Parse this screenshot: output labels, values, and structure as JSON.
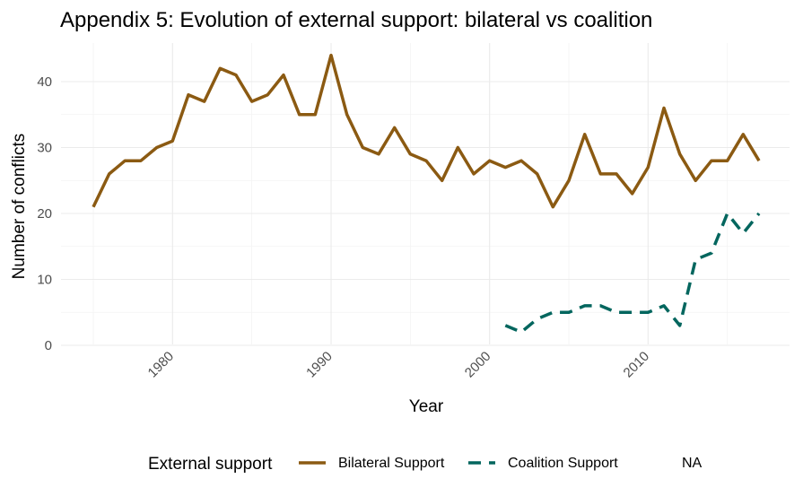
{
  "chart_data": {
    "type": "line",
    "title": "Appendix 5: Evolution of external support: bilateral vs coalition",
    "xlabel": "Year",
    "ylabel": "Number of conflicts",
    "xlim": [
      1975,
      2017
    ],
    "ylim": [
      0,
      44
    ],
    "x_ticks": [
      1980,
      1990,
      2000,
      2010
    ],
    "y_ticks": [
      0,
      10,
      20,
      30,
      40
    ],
    "grid": true,
    "legend": {
      "title": "External support",
      "position": "bottom",
      "entries": [
        "Bilateral Support",
        "Coalition Support",
        "NA"
      ]
    },
    "series": [
      {
        "name": "Bilateral Support",
        "color": "#8b5a12",
        "linestyle": "solid",
        "x": [
          1975,
          1976,
          1977,
          1978,
          1979,
          1980,
          1981,
          1982,
          1983,
          1984,
          1985,
          1986,
          1987,
          1988,
          1989,
          1990,
          1991,
          1992,
          1993,
          1994,
          1995,
          1996,
          1997,
          1998,
          1999,
          2000,
          2001,
          2002,
          2003,
          2004,
          2005,
          2006,
          2007,
          2008,
          2009,
          2010,
          2011,
          2012,
          2013,
          2014,
          2015,
          2016,
          2017
        ],
        "y": [
          21,
          26,
          28,
          28,
          30,
          31,
          38,
          37,
          42,
          41,
          37,
          38,
          41,
          35,
          35,
          44,
          35,
          30,
          29,
          33,
          29,
          28,
          25,
          30,
          26,
          28,
          27,
          28,
          26,
          21,
          25,
          32,
          26,
          26,
          23,
          27,
          36,
          29,
          25,
          28,
          28,
          32,
          28
        ]
      },
      {
        "name": "Coalition Support",
        "color": "#03665e",
        "linestyle": "dashed",
        "x": [
          2001,
          2002,
          2003,
          2004,
          2005,
          2006,
          2007,
          2008,
          2009,
          2010,
          2011,
          2012,
          2013,
          2014,
          2015,
          2016,
          2017
        ],
        "y": [
          3,
          2,
          4,
          5,
          5,
          6,
          6,
          5,
          5,
          5,
          6,
          3,
          13,
          14,
          20,
          17,
          20
        ]
      }
    ]
  }
}
